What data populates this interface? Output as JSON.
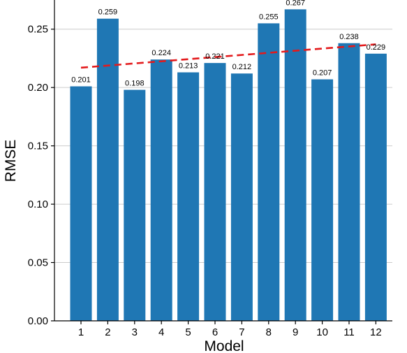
{
  "chart_data": {
    "type": "bar",
    "title": "",
    "xlabel": "Model",
    "ylabel": "RMSE",
    "categories": [
      "1",
      "2",
      "3",
      "4",
      "5",
      "6",
      "7",
      "8",
      "9",
      "10",
      "11",
      "12"
    ],
    "values": [
      0.201,
      0.259,
      0.198,
      0.224,
      0.213,
      0.221,
      0.212,
      0.255,
      0.267,
      0.207,
      0.238,
      0.229
    ],
    "data_labels": [
      "0.201",
      "0.259",
      "0.198",
      "0.224",
      "0.213",
      "0.221",
      "0.212",
      "0.255",
      "0.267",
      "0.207",
      "0.238",
      "0.229"
    ],
    "ylim": [
      0,
      0.275
    ],
    "yticks": [
      0.0,
      0.05,
      0.1,
      0.15,
      0.2,
      0.25
    ],
    "ytick_labels": [
      "0.00",
      "0.05",
      "0.10",
      "0.15",
      "0.20",
      "0.25"
    ],
    "grid": "horizontal",
    "bar_color": "#1f77b4",
    "trendline": {
      "style": "dashed",
      "color": "#e31a1c",
      "start": {
        "x": "1",
        "y": 0.217
      },
      "end": {
        "x": "12",
        "y": 0.237
      }
    }
  }
}
